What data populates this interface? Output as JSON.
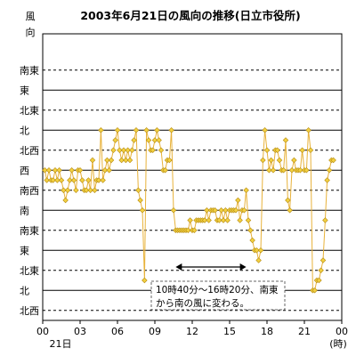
{
  "chart_data": {
    "type": "line",
    "title": "2003年6月21日の風向の推移(日立市役所)",
    "ylabel": "風向",
    "y_categories": [
      "北西",
      "北",
      "北東",
      "東",
      "南東",
      "南",
      "南西",
      "西",
      "北西",
      "北",
      "北東",
      "東",
      "南東"
    ],
    "x_tick_labels": [
      "00",
      "03",
      "06",
      "09",
      "12",
      "15",
      "18",
      "21",
      "00"
    ],
    "x_tick_hours": [
      0,
      3,
      6,
      9,
      12,
      15,
      18,
      21,
      24
    ],
    "x_date_label": "21日",
    "x_unit_label": "(時)",
    "xlim": [
      0,
      24
    ],
    "grid": "horizontal",
    "annotation": {
      "text_line1": "10時40分～16時20分、南東",
      "text_line2": "から南の風に変わる。",
      "from_hour": 10.67,
      "to_hour": 16.33
    },
    "series": [
      {
        "color": "#e8b23a",
        "marker_color": "#f2d040",
        "points": [
          [
            0.17,
            7
          ],
          [
            0.33,
            6.5
          ],
          [
            0.5,
            7
          ],
          [
            0.67,
            6.5
          ],
          [
            0.83,
            6.5
          ],
          [
            1.0,
            7
          ],
          [
            1.17,
            6.5
          ],
          [
            1.33,
            7
          ],
          [
            1.5,
            6.5
          ],
          [
            1.67,
            6
          ],
          [
            1.83,
            5.5
          ],
          [
            2.0,
            6
          ],
          [
            2.17,
            6.5
          ],
          [
            2.33,
            7
          ],
          [
            2.5,
            6.5
          ],
          [
            2.67,
            6
          ],
          [
            2.83,
            7
          ],
          [
            3.0,
            7
          ],
          [
            3.17,
            6.5
          ],
          [
            3.33,
            6
          ],
          [
            3.5,
            6
          ],
          [
            3.67,
            6.5
          ],
          [
            3.83,
            6
          ],
          [
            4.0,
            7.5
          ],
          [
            4.17,
            6
          ],
          [
            4.33,
            6.5
          ],
          [
            4.5,
            6.5
          ],
          [
            4.67,
            9
          ],
          [
            4.83,
            6.5
          ],
          [
            5.0,
            7
          ],
          [
            5.17,
            7.5
          ],
          [
            5.33,
            7
          ],
          [
            5.5,
            7.5
          ],
          [
            5.67,
            8
          ],
          [
            5.83,
            8.5
          ],
          [
            6.0,
            9
          ],
          [
            6.17,
            8
          ],
          [
            6.33,
            7.5
          ],
          [
            6.5,
            8
          ],
          [
            6.67,
            7.5
          ],
          [
            6.83,
            8
          ],
          [
            7.0,
            7.5
          ],
          [
            7.17,
            8
          ],
          [
            7.33,
            8.5
          ],
          [
            7.5,
            9
          ],
          [
            7.67,
            6
          ],
          [
            7.83,
            5.5
          ],
          [
            8.0,
            5
          ],
          [
            8.17,
            1.5
          ],
          [
            8.33,
            9
          ],
          [
            8.5,
            8.5
          ],
          [
            8.67,
            8
          ],
          [
            8.83,
            8
          ],
          [
            9.0,
            8.5
          ],
          [
            9.17,
            9
          ],
          [
            9.33,
            8.5
          ],
          [
            9.5,
            8
          ],
          [
            9.67,
            7
          ],
          [
            9.83,
            7
          ],
          [
            10.0,
            7.5
          ],
          [
            10.17,
            7.5
          ],
          [
            10.33,
            9
          ],
          [
            10.5,
            5
          ],
          [
            10.67,
            4
          ],
          [
            10.83,
            4
          ],
          [
            11.0,
            4
          ],
          [
            11.17,
            4
          ],
          [
            11.33,
            4
          ],
          [
            11.5,
            4
          ],
          [
            11.67,
            4
          ],
          [
            11.83,
            4.5
          ],
          [
            12.0,
            4
          ],
          [
            12.17,
            4
          ],
          [
            12.33,
            4.5
          ],
          [
            12.5,
            4.5
          ],
          [
            12.67,
            4.5
          ],
          [
            12.83,
            4.5
          ],
          [
            13.0,
            4.5
          ],
          [
            13.17,
            5
          ],
          [
            13.33,
            4.5
          ],
          [
            13.5,
            5
          ],
          [
            13.67,
            5
          ],
          [
            13.83,
            5
          ],
          [
            14.0,
            4.5
          ],
          [
            14.17,
            4.5
          ],
          [
            14.33,
            5
          ],
          [
            14.5,
            4.5
          ],
          [
            14.67,
            5
          ],
          [
            14.83,
            4.5
          ],
          [
            15.0,
            5
          ],
          [
            15.17,
            5
          ],
          [
            15.33,
            5
          ],
          [
            15.5,
            5
          ],
          [
            15.67,
            5.5
          ],
          [
            15.83,
            4.5
          ],
          [
            16.0,
            5
          ],
          [
            16.17,
            5
          ],
          [
            16.33,
            6
          ],
          [
            16.5,
            4.5
          ],
          [
            16.67,
            4
          ],
          [
            16.83,
            3.5
          ],
          [
            17.0,
            3
          ],
          [
            17.17,
            3
          ],
          [
            17.33,
            2.5
          ],
          [
            17.5,
            3
          ],
          [
            17.67,
            7.5
          ],
          [
            17.83,
            9
          ],
          [
            18.0,
            8
          ],
          [
            18.17,
            7
          ],
          [
            18.33,
            7.5
          ],
          [
            18.5,
            7
          ],
          [
            18.67,
            8
          ],
          [
            18.83,
            8
          ],
          [
            19.0,
            7.5
          ],
          [
            19.17,
            7
          ],
          [
            19.33,
            7
          ],
          [
            19.5,
            8.5
          ],
          [
            19.67,
            5.5
          ],
          [
            19.83,
            5
          ],
          [
            20.0,
            7
          ],
          [
            20.17,
            7.5
          ],
          [
            20.33,
            7
          ],
          [
            20.5,
            7
          ],
          [
            20.67,
            7
          ],
          [
            20.83,
            8
          ],
          [
            21.0,
            7
          ],
          [
            21.17,
            7
          ],
          [
            21.33,
            9
          ],
          [
            21.5,
            8
          ],
          [
            21.67,
            1
          ],
          [
            21.83,
            1
          ],
          [
            22.0,
            1.5
          ],
          [
            22.17,
            1.5
          ],
          [
            22.33,
            2
          ],
          [
            22.5,
            2.5
          ],
          [
            22.67,
            4.5
          ],
          [
            22.83,
            6.5
          ],
          [
            23.0,
            7
          ],
          [
            23.17,
            7.5
          ],
          [
            23.33,
            7.5
          ]
        ]
      }
    ]
  }
}
